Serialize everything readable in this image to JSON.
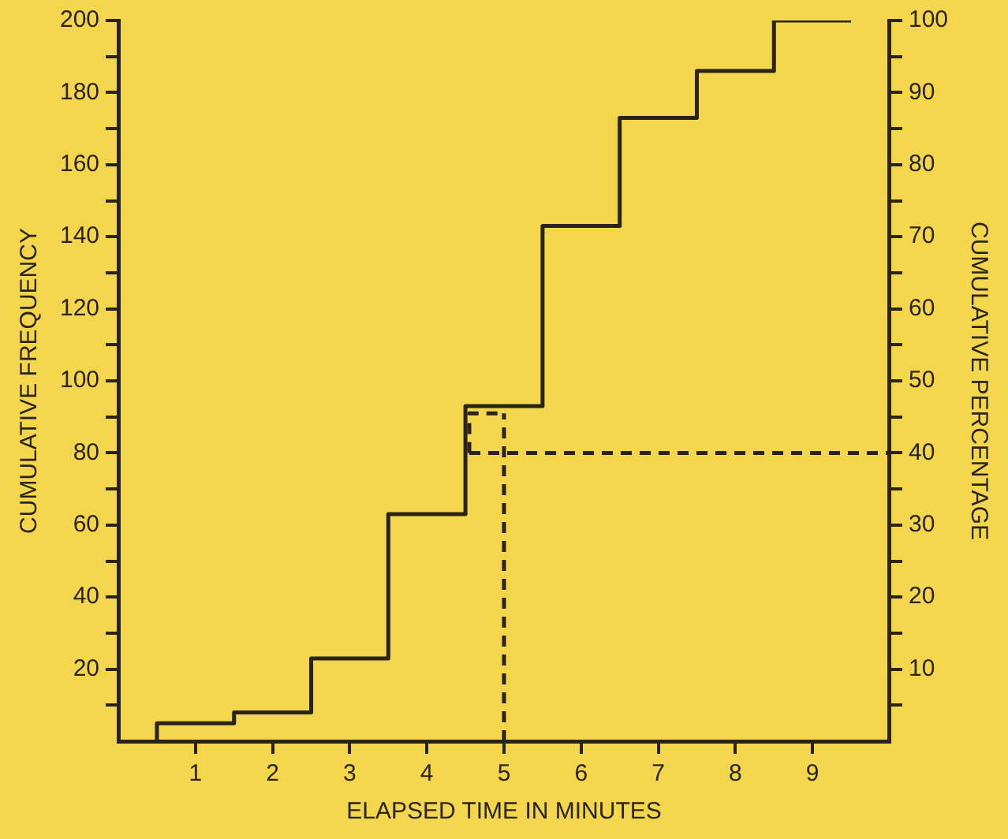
{
  "chart_data": {
    "type": "step",
    "xlabel": "ELAPSED TIME IN MINUTES",
    "ylabel": "CUMULATIVE FREQUENCY",
    "y2label": "CUMULATIVE PERCENTAGE",
    "xlim": [
      0,
      10
    ],
    "xticks": [
      1,
      2,
      3,
      4,
      5,
      6,
      7,
      8,
      9
    ],
    "ylim": [
      0,
      200
    ],
    "yticks": [
      {
        "value": 10,
        "label": null
      },
      20,
      {
        "value": 30,
        "label": null
      },
      40,
      {
        "value": 50,
        "label": null
      },
      60,
      {
        "value": 70,
        "label": null
      },
      80,
      {
        "value": 90,
        "label": null
      },
      100,
      {
        "value": 110,
        "label": null
      },
      120,
      {
        "value": 130,
        "label": null
      },
      140,
      {
        "value": 150,
        "label": null
      },
      160,
      {
        "value": 170,
        "label": null
      },
      180,
      {
        "value": 190,
        "label": null
      },
      200
    ],
    "y2lim": [
      0,
      100
    ],
    "y2ticks": [
      {
        "value": 5,
        "label": null
      },
      10,
      {
        "value": 15,
        "label": null
      },
      20,
      {
        "value": 25,
        "label": null
      },
      30,
      {
        "value": 35,
        "label": null
      },
      40,
      {
        "value": 45,
        "label": null
      },
      50,
      {
        "value": 55,
        "label": null
      },
      60,
      {
        "value": 65,
        "label": null
      },
      70,
      {
        "value": 75,
        "label": null
      },
      80,
      {
        "value": 85,
        "label": null
      },
      90,
      {
        "value": 95,
        "label": null
      },
      100
    ],
    "grid": false,
    "legend": false,
    "series": [
      {
        "type": "step",
        "color": "#2a2418",
        "x": [
          0.5,
          0.5,
          1.5,
          2.5,
          3.5,
          4.5,
          5.5,
          6.5,
          7.5,
          8.5,
          9.5
        ],
        "values": [
          0,
          5,
          8,
          23,
          63,
          93,
          143,
          173,
          186,
          200,
          200
        ]
      },
      {
        "type": "line",
        "line_style": "dashed",
        "color": "#2a2418",
        "x": [
          4.55,
          10
        ],
        "values": [
          80,
          80
        ]
      },
      {
        "type": "line",
        "line_style": "dashed",
        "color": "#2a2418",
        "x": [
          5,
          5
        ],
        "values": [
          0,
          91
        ]
      },
      {
        "type": "line",
        "line_style": "dashed",
        "color": "#2a2418",
        "x": [
          4.55,
          4.55,
          5
        ],
        "values": [
          80,
          91,
          91
        ]
      }
    ]
  }
}
